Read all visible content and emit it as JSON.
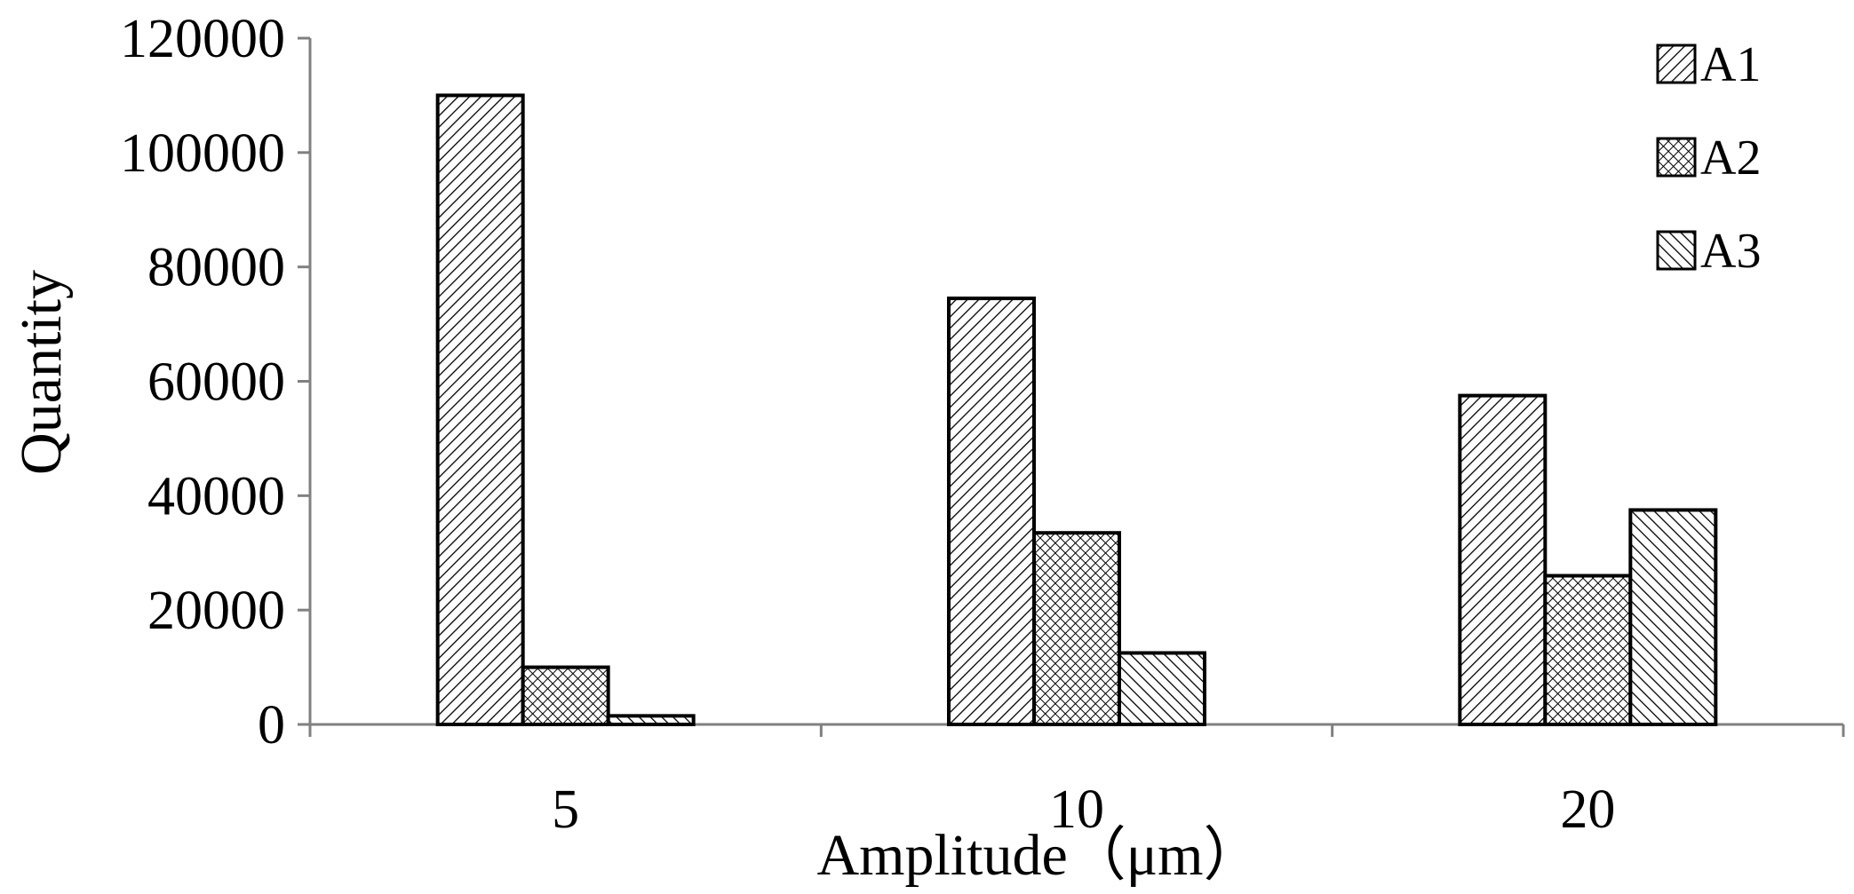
{
  "chart_data": {
    "type": "bar",
    "title": "",
    "xlabel": "Amplitude（μm）",
    "ylabel": "Quantity",
    "categories": [
      "5",
      "10",
      "20"
    ],
    "series": [
      {
        "name": "A1",
        "values": [
          110000,
          74500,
          57500
        ],
        "pattern": "hatch-diagonal"
      },
      {
        "name": "A2",
        "values": [
          10000,
          33500,
          26000
        ],
        "pattern": "crosshatch"
      },
      {
        "name": "A3",
        "values": [
          1500,
          12500,
          37500
        ],
        "pattern": "hatch-backdiagonal"
      }
    ],
    "ylim": [
      0,
      120000
    ],
    "yticks": [
      0,
      20000,
      40000,
      60000,
      80000,
      100000,
      120000
    ],
    "ytick_labels": [
      "0",
      "20000",
      "40000",
      "60000",
      "80000",
      "100000",
      "120000"
    ],
    "grid": false,
    "legend_position": "top-right",
    "colors": {
      "bar_stroke": "#000000",
      "bar_fill": "#ffffff",
      "axis": "#808080",
      "text": "#000000"
    }
  }
}
